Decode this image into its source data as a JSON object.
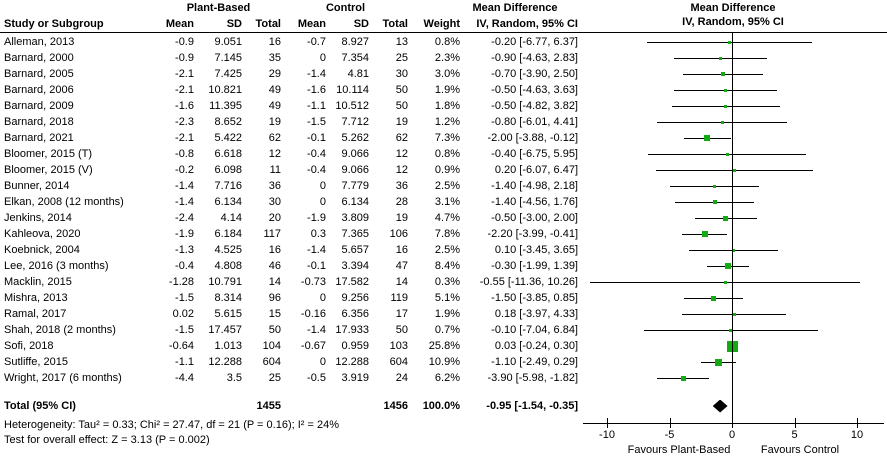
{
  "header": {
    "group_plant": "Plant-Based",
    "group_control": "Control",
    "md_title_text": "Mean Difference",
    "md_title_plot": "Mean Difference",
    "ci_subtitle_text": "IV, Random, 95% CI",
    "ci_subtitle_plot": "IV, Random, 95% CI",
    "col_study": "Study or Subgroup",
    "col_mean1": "Mean",
    "col_sd1": "SD",
    "col_total1": "Total",
    "col_mean2": "Mean",
    "col_sd2": "SD",
    "col_total2": "Total",
    "col_weight": "Weight"
  },
  "footnotes": {
    "heterogeneity": "Heterogeneity: Tau² = 0.33; Chi² = 27.47, df = 21 (P = 0.16); I² = 24%",
    "overall_effect": "Test for overall effect: Z = 3.13 (P = 0.002)"
  },
  "colors": {
    "marker_green": "#14aa14",
    "line_black": "#000000"
  },
  "chart_data": {
    "type": "forest",
    "title": "Mean Difference  IV, Random, 95% CI",
    "xlim": [
      -12,
      12
    ],
    "x_ticks": [
      -10,
      -5,
      0,
      5,
      10
    ],
    "favours_left": "Favours Plant-Based",
    "favours_right": "Favours Control",
    "studies": [
      {
        "name": "Alleman, 2013",
        "pb_mean": "-0.9",
        "pb_sd": "9.051",
        "pb_total": "16",
        "c_mean": "-0.7",
        "c_sd": "8.927",
        "c_total": "13",
        "weight": "0.8%",
        "weight_val": 0.8,
        "md": -0.2,
        "ci_low": -6.77,
        "ci_high": 6.37,
        "ci_text": "-0.20 [-6.77, 6.37]"
      },
      {
        "name": "Barnard, 2000",
        "pb_mean": "-0.9",
        "pb_sd": "7.145",
        "pb_total": "35",
        "c_mean": "0",
        "c_sd": "7.354",
        "c_total": "25",
        "weight": "2.3%",
        "weight_val": 2.3,
        "md": -0.9,
        "ci_low": -4.63,
        "ci_high": 2.83,
        "ci_text": "-0.90 [-4.63, 2.83]"
      },
      {
        "name": "Barnard, 2005",
        "pb_mean": "-2.1",
        "pb_sd": "7.425",
        "pb_total": "29",
        "c_mean": "-1.4",
        "c_sd": "4.81",
        "c_total": "30",
        "weight": "3.0%",
        "weight_val": 3.0,
        "md": -0.7,
        "ci_low": -3.9,
        "ci_high": 2.5,
        "ci_text": "-0.70 [-3.90, 2.50]"
      },
      {
        "name": "Barnard, 2006",
        "pb_mean": "-2.1",
        "pb_sd": "10.821",
        "pb_total": "49",
        "c_mean": "-1.6",
        "c_sd": "10.114",
        "c_total": "50",
        "weight": "1.9%",
        "weight_val": 1.9,
        "md": -0.5,
        "ci_low": -4.63,
        "ci_high": 3.63,
        "ci_text": "-0.50 [-4.63, 3.63]"
      },
      {
        "name": "Barnard, 2009",
        "pb_mean": "-1.6",
        "pb_sd": "11.395",
        "pb_total": "49",
        "c_mean": "-1.1",
        "c_sd": "10.512",
        "c_total": "50",
        "weight": "1.8%",
        "weight_val": 1.8,
        "md": -0.5,
        "ci_low": -4.82,
        "ci_high": 3.82,
        "ci_text": "-0.50 [-4.82, 3.82]"
      },
      {
        "name": "Barnard, 2018",
        "pb_mean": "-2.3",
        "pb_sd": "8.652",
        "pb_total": "19",
        "c_mean": "-1.5",
        "c_sd": "7.712",
        "c_total": "19",
        "weight": "1.2%",
        "weight_val": 1.2,
        "md": -0.8,
        "ci_low": -6.01,
        "ci_high": 4.41,
        "ci_text": "-0.80 [-6.01, 4.41]"
      },
      {
        "name": "Barnard, 2021",
        "pb_mean": "-2.1",
        "pb_sd": "5.422",
        "pb_total": "62",
        "c_mean": "-0.1",
        "c_sd": "5.262",
        "c_total": "62",
        "weight": "7.3%",
        "weight_val": 7.3,
        "md": -2.0,
        "ci_low": -3.88,
        "ci_high": -0.12,
        "ci_text": "-2.00 [-3.88, -0.12]"
      },
      {
        "name": "Bloomer, 2015 (T)",
        "pb_mean": "-0.8",
        "pb_sd": "6.618",
        "pb_total": "12",
        "c_mean": "-0.4",
        "c_sd": "9.066",
        "c_total": "12",
        "weight": "0.8%",
        "weight_val": 0.8,
        "md": -0.4,
        "ci_low": -6.75,
        "ci_high": 5.95,
        "ci_text": "-0.40 [-6.75, 5.95]"
      },
      {
        "name": "Bloomer, 2015 (V)",
        "pb_mean": "-0.2",
        "pb_sd": "6.098",
        "pb_total": "11",
        "c_mean": "-0.4",
        "c_sd": "9.066",
        "c_total": "12",
        "weight": "0.9%",
        "weight_val": 0.9,
        "md": 0.2,
        "ci_low": -6.07,
        "ci_high": 6.47,
        "ci_text": "0.20 [-6.07, 6.47]"
      },
      {
        "name": "Bunner, 2014",
        "pb_mean": "-1.4",
        "pb_sd": "7.716",
        "pb_total": "36",
        "c_mean": "0",
        "c_sd": "7.779",
        "c_total": "36",
        "weight": "2.5%",
        "weight_val": 2.5,
        "md": -1.4,
        "ci_low": -4.98,
        "ci_high": 2.18,
        "ci_text": "-1.40 [-4.98, 2.18]"
      },
      {
        "name": "Elkan, 2008 (12 months)",
        "pb_mean": "-1.4",
        "pb_sd": "6.134",
        "pb_total": "30",
        "c_mean": "0",
        "c_sd": "6.134",
        "c_total": "28",
        "weight": "3.1%",
        "weight_val": 3.1,
        "md": -1.4,
        "ci_low": -4.56,
        "ci_high": 1.76,
        "ci_text": "-1.40 [-4.56, 1.76]"
      },
      {
        "name": "Jenkins, 2014",
        "pb_mean": "-2.4",
        "pb_sd": "4.14",
        "pb_total": "20",
        "c_mean": "-1.9",
        "c_sd": "3.809",
        "c_total": "19",
        "weight": "4.7%",
        "weight_val": 4.7,
        "md": -0.5,
        "ci_low": -3.0,
        "ci_high": 2.0,
        "ci_text": "-0.50 [-3.00, 2.00]"
      },
      {
        "name": "Kahleova, 2020",
        "pb_mean": "-1.9",
        "pb_sd": "6.184",
        "pb_total": "117",
        "c_mean": "0.3",
        "c_sd": "7.365",
        "c_total": "106",
        "weight": "7.8%",
        "weight_val": 7.8,
        "md": -2.2,
        "ci_low": -3.99,
        "ci_high": -0.41,
        "ci_text": "-2.20 [-3.99, -0.41]"
      },
      {
        "name": "Koebnick, 2004",
        "pb_mean": "-1.3",
        "pb_sd": "4.525",
        "pb_total": "16",
        "c_mean": "-1.4",
        "c_sd": "5.657",
        "c_total": "16",
        "weight": "2.5%",
        "weight_val": 2.5,
        "md": 0.1,
        "ci_low": -3.45,
        "ci_high": 3.65,
        "ci_text": "0.10 [-3.45, 3.65]"
      },
      {
        "name": "Lee, 2016 (3 months)",
        "pb_mean": "-0.4",
        "pb_sd": "4.808",
        "pb_total": "46",
        "c_mean": "-0.1",
        "c_sd": "3.394",
        "c_total": "47",
        "weight": "8.4%",
        "weight_val": 8.4,
        "md": -0.3,
        "ci_low": -1.99,
        "ci_high": 1.39,
        "ci_text": "-0.30 [-1.99, 1.39]"
      },
      {
        "name": "Macklin, 2015",
        "pb_mean": "-1.28",
        "pb_sd": "10.791",
        "pb_total": "14",
        "c_mean": "-0.73",
        "c_sd": "17.582",
        "c_total": "14",
        "weight": "0.3%",
        "weight_val": 0.3,
        "md": -0.55,
        "ci_low": -11.36,
        "ci_high": 10.26,
        "ci_text": "-0.55 [-11.36, 10.26]"
      },
      {
        "name": "Mishra, 2013",
        "pb_mean": "-1.5",
        "pb_sd": "8.314",
        "pb_total": "96",
        "c_mean": "0",
        "c_sd": "9.256",
        "c_total": "119",
        "weight": "5.1%",
        "weight_val": 5.1,
        "md": -1.5,
        "ci_low": -3.85,
        "ci_high": 0.85,
        "ci_text": "-1.50 [-3.85, 0.85]"
      },
      {
        "name": "Ramal, 2017",
        "pb_mean": "0.02",
        "pb_sd": "5.615",
        "pb_total": "15",
        "c_mean": "-0.16",
        "c_sd": "6.356",
        "c_total": "17",
        "weight": "1.9%",
        "weight_val": 1.9,
        "md": 0.18,
        "ci_low": -3.97,
        "ci_high": 4.33,
        "ci_text": "0.18 [-3.97, 4.33]"
      },
      {
        "name": "Shah, 2018 (2 months)",
        "pb_mean": "-1.5",
        "pb_sd": "17.457",
        "pb_total": "50",
        "c_mean": "-1.4",
        "c_sd": "17.933",
        "c_total": "50",
        "weight": "0.7%",
        "weight_val": 0.7,
        "md": -0.1,
        "ci_low": -7.04,
        "ci_high": 6.84,
        "ci_text": "-0.10 [-7.04, 6.84]"
      },
      {
        "name": "Sofi, 2018",
        "pb_mean": "-0.64",
        "pb_sd": "1.013",
        "pb_total": "104",
        "c_mean": "-0.67",
        "c_sd": "0.959",
        "c_total": "103",
        "weight": "25.8%",
        "weight_val": 25.8,
        "md": 0.03,
        "ci_low": -0.24,
        "ci_high": 0.3,
        "ci_text": "0.03 [-0.24, 0.30]"
      },
      {
        "name": "Sutliffe, 2015",
        "pb_mean": "-1.1",
        "pb_sd": "12.288",
        "pb_total": "604",
        "c_mean": "0",
        "c_sd": "12.288",
        "c_total": "604",
        "weight": "10.9%",
        "weight_val": 10.9,
        "md": -1.1,
        "ci_low": -2.49,
        "ci_high": 0.29,
        "ci_text": "-1.10 [-2.49, 0.29]"
      },
      {
        "name": "Wright, 2017 (6 months)",
        "pb_mean": "-4.4",
        "pb_sd": "3.5",
        "pb_total": "25",
        "c_mean": "-0.5",
        "c_sd": "3.919",
        "c_total": "24",
        "weight": "6.2%",
        "weight_val": 6.2,
        "md": -3.9,
        "ci_low": -5.98,
        "ci_high": -1.82,
        "ci_text": "-3.90 [-5.98, -1.82]"
      }
    ],
    "total": {
      "label": "Total (95% CI)",
      "pb_total": "1455",
      "c_total": "1456",
      "weight": "100.0%",
      "md": -0.95,
      "ci_low": -1.54,
      "ci_high": -0.35,
      "ci_text": "-0.95 [-1.54, -0.35]"
    }
  }
}
